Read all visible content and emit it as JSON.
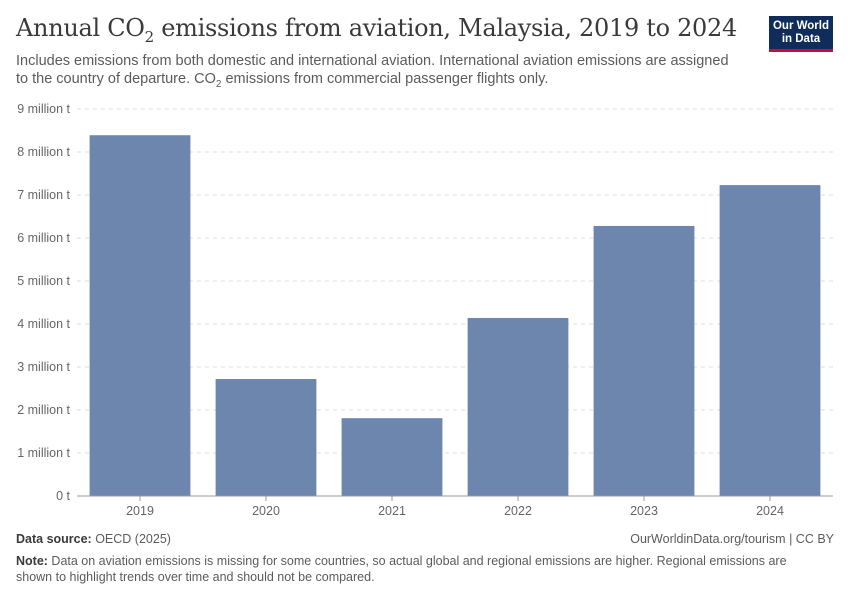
{
  "header": {
    "title_main": "Annual CO",
    "title_sub": "2",
    "title_rest": " emissions from aviation, Malaysia, 2019 to 2024",
    "subtitle_line1": "Includes emissions from both domestic and international aviation. International aviation emissions are assigned",
    "subtitle_line2a": "to the country of departure. CO",
    "subtitle_line2sub": "2",
    "subtitle_line2b": " emissions from commercial passenger flights only."
  },
  "logo": {
    "line1": "Our World",
    "line2": "in Data"
  },
  "footer": {
    "source_label": "Data source:",
    "source_value": " OECD (2025)",
    "link": "OurWorldinData.org/tourism | CC BY",
    "note_label": "Note:",
    "note_text": " Data on aviation emissions is missing for some countries, so actual global and regional emissions are higher. Regional emissions are shown to highlight trends over time and should not be compared."
  },
  "colors": {
    "bar": "#6d86ae",
    "grid": "#dddddd",
    "axis": "#999999"
  },
  "chart_data": {
    "type": "bar",
    "title": "Annual CO2 emissions from aviation, Malaysia, 2019 to 2024",
    "categories": [
      "2019",
      "2020",
      "2021",
      "2022",
      "2023",
      "2024"
    ],
    "values": [
      8.39,
      2.72,
      1.81,
      4.14,
      6.28,
      7.23
    ],
    "unit": "million t",
    "ylim": [
      0,
      9
    ],
    "yticks": [
      0,
      1,
      2,
      3,
      4,
      5,
      6,
      7,
      8,
      9
    ],
    "ytick_labels": [
      "0 t",
      "1 million t",
      "2 million t",
      "3 million t",
      "4 million t",
      "5 million t",
      "6 million t",
      "7 million t",
      "8 million t",
      "9 million t"
    ],
    "xlabel": "",
    "ylabel": "",
    "grid": true
  }
}
